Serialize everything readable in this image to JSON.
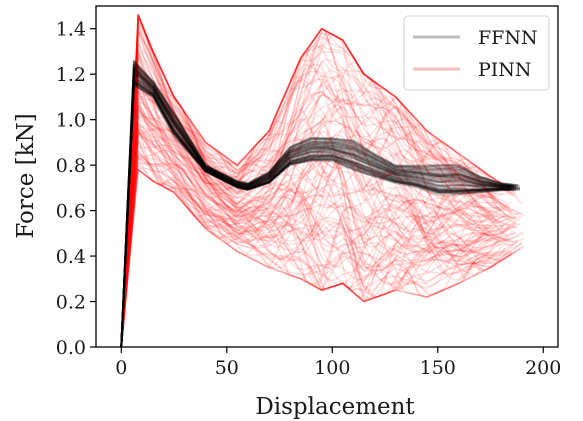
{
  "chart_data": {
    "type": "line",
    "xlabel": "Displacement",
    "ylabel": "Force [kN]",
    "xlim": [
      -12,
      207
    ],
    "ylim": [
      0,
      1.5
    ],
    "xticks": [
      0,
      50,
      100,
      150,
      200
    ],
    "yticks": [
      0.0,
      0.2,
      0.4,
      0.6,
      0.8,
      1.0,
      1.2,
      1.4
    ],
    "xtick_labels": [
      "0",
      "50",
      "100",
      "150",
      "200"
    ],
    "ytick_labels": [
      "0.0",
      "0.2",
      "0.4",
      "0.6",
      "0.8",
      "1.0",
      "1.2",
      "1.4"
    ],
    "grid": false,
    "legend_position": "top-right",
    "series": [
      {
        "name": "FFNN",
        "color": "#000000",
        "opacity": 0.12,
        "curve_count": 70,
        "envelope_x": [
          0,
          6,
          15,
          25,
          40,
          55,
          60,
          70,
          80,
          90,
          100,
          110,
          120,
          130,
          140,
          150,
          160,
          170,
          180,
          190
        ],
        "envelope_lower": [
          0.0,
          1.15,
          1.1,
          0.93,
          0.77,
          0.7,
          0.69,
          0.72,
          0.8,
          0.82,
          0.82,
          0.78,
          0.75,
          0.72,
          0.7,
          0.67,
          0.67,
          0.68,
          0.69,
          0.69
        ],
        "envelope_upper": [
          0.0,
          1.26,
          1.17,
          1.03,
          0.8,
          0.73,
          0.72,
          0.77,
          0.88,
          0.92,
          0.92,
          0.91,
          0.85,
          0.8,
          0.8,
          0.8,
          0.8,
          0.75,
          0.72,
          0.71
        ]
      },
      {
        "name": "PINN",
        "color": "#ff0000",
        "opacity": 0.12,
        "curve_count": 120,
        "envelope_x": [
          0,
          8,
          15,
          25,
          40,
          55,
          70,
          85,
          95,
          105,
          115,
          130,
          145,
          160,
          175,
          192
        ],
        "envelope_lower": [
          0.0,
          0.78,
          0.73,
          0.68,
          0.52,
          0.42,
          0.35,
          0.3,
          0.25,
          0.28,
          0.2,
          0.25,
          0.22,
          0.28,
          0.35,
          0.45
        ],
        "envelope_upper": [
          0.0,
          1.46,
          1.3,
          1.1,
          0.9,
          0.8,
          0.95,
          1.27,
          1.4,
          1.35,
          1.2,
          1.1,
          0.95,
          0.85,
          0.75,
          0.65
        ]
      }
    ]
  }
}
